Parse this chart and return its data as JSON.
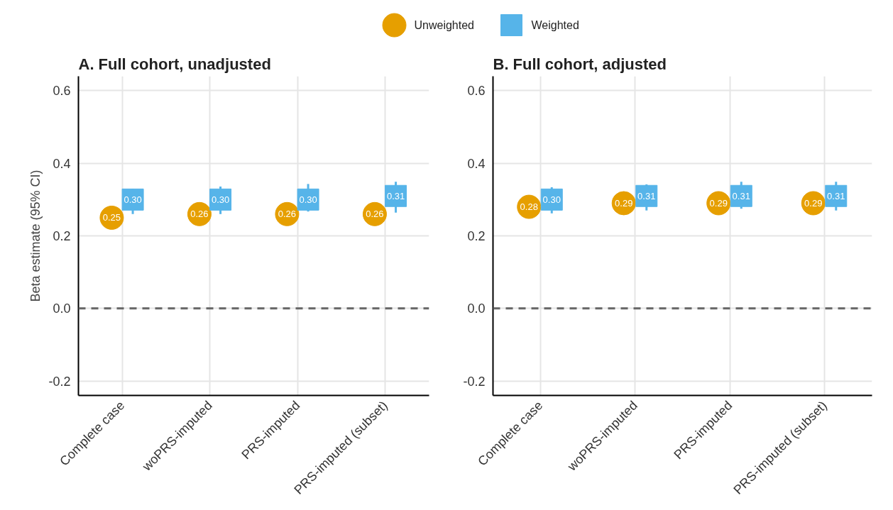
{
  "chart_data": [
    {
      "type": "scatter",
      "title": "A. Full cohort, unadjusted",
      "ylabel": "Beta estimate (95% CI)",
      "categories": [
        "Complete case",
        "woPRS-imputed",
        "PRS-imputed",
        "PRS-imputed (subset)"
      ],
      "ylim": [
        -0.24,
        0.64
      ],
      "yticks": [
        {
          "value": -0.2,
          "label": "-0.2"
        },
        {
          "value": 0,
          "label": "0.0"
        },
        {
          "value": 0.2,
          "label": "0.2"
        },
        {
          "value": 0.4,
          "label": "0.4"
        },
        {
          "value": 0.6,
          "label": "0.6"
        }
      ],
      "grid": true,
      "legend": "top",
      "ref_lines": [
        {
          "axis": "y",
          "value": 0,
          "color": "#666666",
          "line_style": "dashed"
        }
      ],
      "series": [
        {
          "name": "Unweighted",
          "color": "#e69f00",
          "marker": "circle",
          "values": [
            0.25,
            0.26,
            0.26,
            0.26
          ],
          "value_labels": [
            "0.25",
            "0.26",
            "0.26",
            "0.26"
          ]
        },
        {
          "name": "Weighted",
          "color": "#56b4e9",
          "marker": "square",
          "values": [
            0.3,
            0.3,
            0.3,
            0.31
          ],
          "value_labels": [
            "0.30",
            "0.30",
            "0.30",
            "0.31"
          ],
          "errors": [
            [
              0.26,
              0.33
            ],
            [
              0.26,
              0.336
            ],
            [
              0.267,
              0.343
            ],
            [
              0.264,
              0.349
            ]
          ]
        }
      ]
    },
    {
      "type": "scatter",
      "title": "B. Full cohort, adjusted",
      "categories": [
        "Complete case",
        "woPRS-imputed",
        "PRS-imputed",
        "PRS-imputed (subset)"
      ],
      "ylim": [
        -0.24,
        0.64
      ],
      "yticks": [
        {
          "value": -0.2,
          "label": "-0.2"
        },
        {
          "value": 0,
          "label": "0.0"
        },
        {
          "value": 0.2,
          "label": "0.2"
        },
        {
          "value": 0.4,
          "label": "0.4"
        },
        {
          "value": 0.6,
          "label": "0.6"
        }
      ],
      "grid": true,
      "ref_lines": [
        {
          "axis": "y",
          "value": 0,
          "color": "#666666",
          "line_style": "dashed"
        }
      ],
      "series": [
        {
          "color": "#e69f00",
          "marker": "circle",
          "values": [
            0.28,
            0.29,
            0.29,
            0.29
          ],
          "value_labels": [
            "0.28",
            "0.29",
            "0.29",
            "0.29"
          ]
        },
        {
          "color": "#56b4e9",
          "marker": "square",
          "values": [
            0.3,
            0.31,
            0.31,
            0.31
          ],
          "value_labels": [
            "0.30",
            "0.31",
            "0.31",
            "0.31"
          ],
          "errors": [
            [
              0.262,
              0.334
            ],
            [
              0.27,
              0.342
            ],
            [
              0.275,
              0.349
            ],
            [
              0.27,
              0.349
            ]
          ]
        }
      ]
    }
  ]
}
